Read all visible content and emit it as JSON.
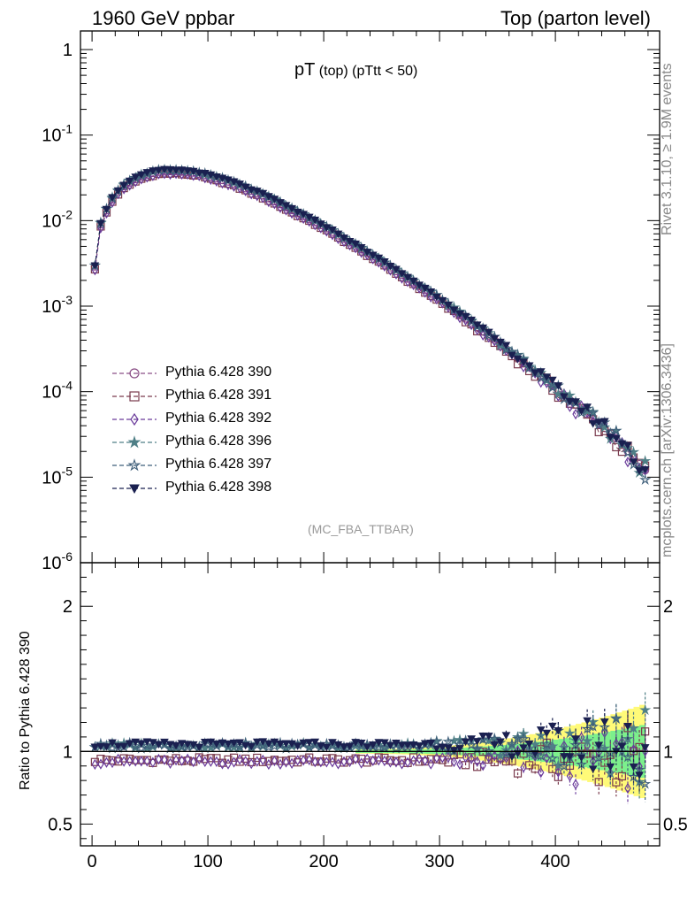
{
  "header": {
    "left": "1960 GeV ppbar",
    "right": "Top (parton level)"
  },
  "side_labels": {
    "top": "Rivet 3.1.10, ≥ 1.9M events",
    "bottom": "mcplots.cern.ch [arXiv:1306.3436]"
  },
  "analysis": "(MC_FBA_TTBAR)",
  "title": {
    "main": "pT",
    "sub": " (top) (pTtt < 50)"
  },
  "ratio_ylabel": "Ratio to Pythia 6.428 390",
  "legend": [
    {
      "label": "Pythia 6.428 390",
      "color": "#8a4f86",
      "marker": "circle-open"
    },
    {
      "label": "Pythia 6.428 391",
      "color": "#7a3b4e",
      "marker": "square-open"
    },
    {
      "label": "Pythia 6.428 392",
      "color": "#6a3a9a",
      "marker": "diamond-open"
    },
    {
      "label": "Pythia 6.428 396",
      "color": "#4f7f86",
      "marker": "star-filled"
    },
    {
      "label": "Pythia 6.428 397",
      "color": "#3f5f7a",
      "marker": "star-open"
    },
    {
      "label": "Pythia 6.428 398",
      "color": "#1a2050",
      "marker": "triangle-down-filled"
    }
  ],
  "chart_data": {
    "type": "scatter",
    "x_axis": {
      "range": [
        -10,
        490
      ],
      "ticks": [
        0,
        100,
        200,
        300,
        400
      ]
    },
    "main_y_axis": {
      "scale": "log",
      "range": [
        1e-06,
        1.5
      ],
      "tick_labels": [
        "1",
        "10^-1",
        "10^-2",
        "10^-3",
        "10^-4",
        "10^-5",
        "10^-6"
      ]
    },
    "ratio_y_axis": {
      "range": [
        0.35,
        2.3
      ],
      "ticks": [
        0.5,
        1,
        2
      ],
      "tick_labels": [
        "0.5",
        "1",
        "2"
      ]
    },
    "reference_curve": {
      "x": [
        2.5,
        7.5,
        15,
        25,
        40,
        55,
        70,
        90,
        120,
        150,
        200,
        250,
        300,
        350,
        400,
        450,
        477.5
      ],
      "y": [
        0.0029,
        0.009,
        0.016,
        0.024,
        0.032,
        0.037,
        0.038,
        0.036,
        0.028,
        0.019,
        0.0085,
        0.0033,
        0.0012,
        0.00038,
        0.00011,
        3.1e-05,
        1.2e-05
      ]
    },
    "series_ratio": [
      {
        "name": "Pythia 6.428 390",
        "ratio": 1.0
      },
      {
        "name": "Pythia 6.428 391",
        "ratio": 0.94
      },
      {
        "name": "Pythia 6.428 392",
        "ratio": 0.93
      },
      {
        "name": "Pythia 6.428 396",
        "ratio": 1.04
      },
      {
        "name": "Pythia 6.428 397",
        "ratio": 1.04
      },
      {
        "name": "Pythia 6.428 398",
        "ratio": 1.05
      }
    ],
    "uncertainty_band": {
      "stat_color": "#7cf08c",
      "syst_color": "#fffa78"
    }
  }
}
